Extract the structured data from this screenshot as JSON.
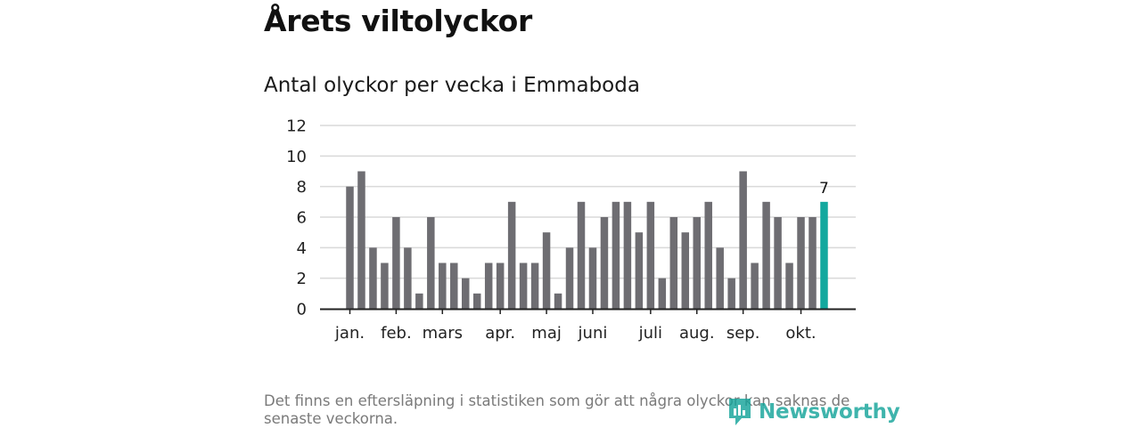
{
  "header": {
    "title": "Årets viltolyckor",
    "subtitle": "Antal olyckor per vecka i Emmaboda"
  },
  "chart_data": {
    "type": "bar",
    "title": "Antal olyckor per vecka i Emmaboda",
    "xlabel": "",
    "ylabel": "",
    "ylim": [
      0,
      12
    ],
    "yticks": [
      0,
      2,
      4,
      6,
      8,
      10,
      12
    ],
    "grid": true,
    "values": [
      8,
      9,
      4,
      3,
      6,
      4,
      1,
      6,
      3,
      3,
      2,
      1,
      3,
      3,
      7,
      3,
      3,
      5,
      1,
      4,
      7,
      4,
      6,
      7,
      7,
      5,
      7,
      2,
      6,
      5,
      6,
      7,
      4,
      2,
      9,
      3,
      7,
      6,
      3,
      6,
      6,
      7
    ],
    "month_labels": [
      {
        "label": "jan.",
        "week_index": 0
      },
      {
        "label": "feb.",
        "week_index": 4
      },
      {
        "label": "mars",
        "week_index": 8
      },
      {
        "label": "apr.",
        "week_index": 13
      },
      {
        "label": "maj",
        "week_index": 17
      },
      {
        "label": "juni",
        "week_index": 21
      },
      {
        "label": "juli",
        "week_index": 26
      },
      {
        "label": "aug.",
        "week_index": 30
      },
      {
        "label": "sep.",
        "week_index": 34
      },
      {
        "label": "okt.",
        "week_index": 39
      }
    ],
    "highlight_index": 41,
    "highlight_label": "7",
    "colors": {
      "bar": "#6e6d72",
      "highlight": "#13a89e",
      "grid": "#d9d9d9",
      "axis": "#222222"
    }
  },
  "footnote": "Det finns en eftersläpning i statistiken som gör att några olyckor kan saknas de senaste veckorna.",
  "logo": {
    "text": "Newsworthy",
    "icon": "newsworthy-logo-icon"
  }
}
